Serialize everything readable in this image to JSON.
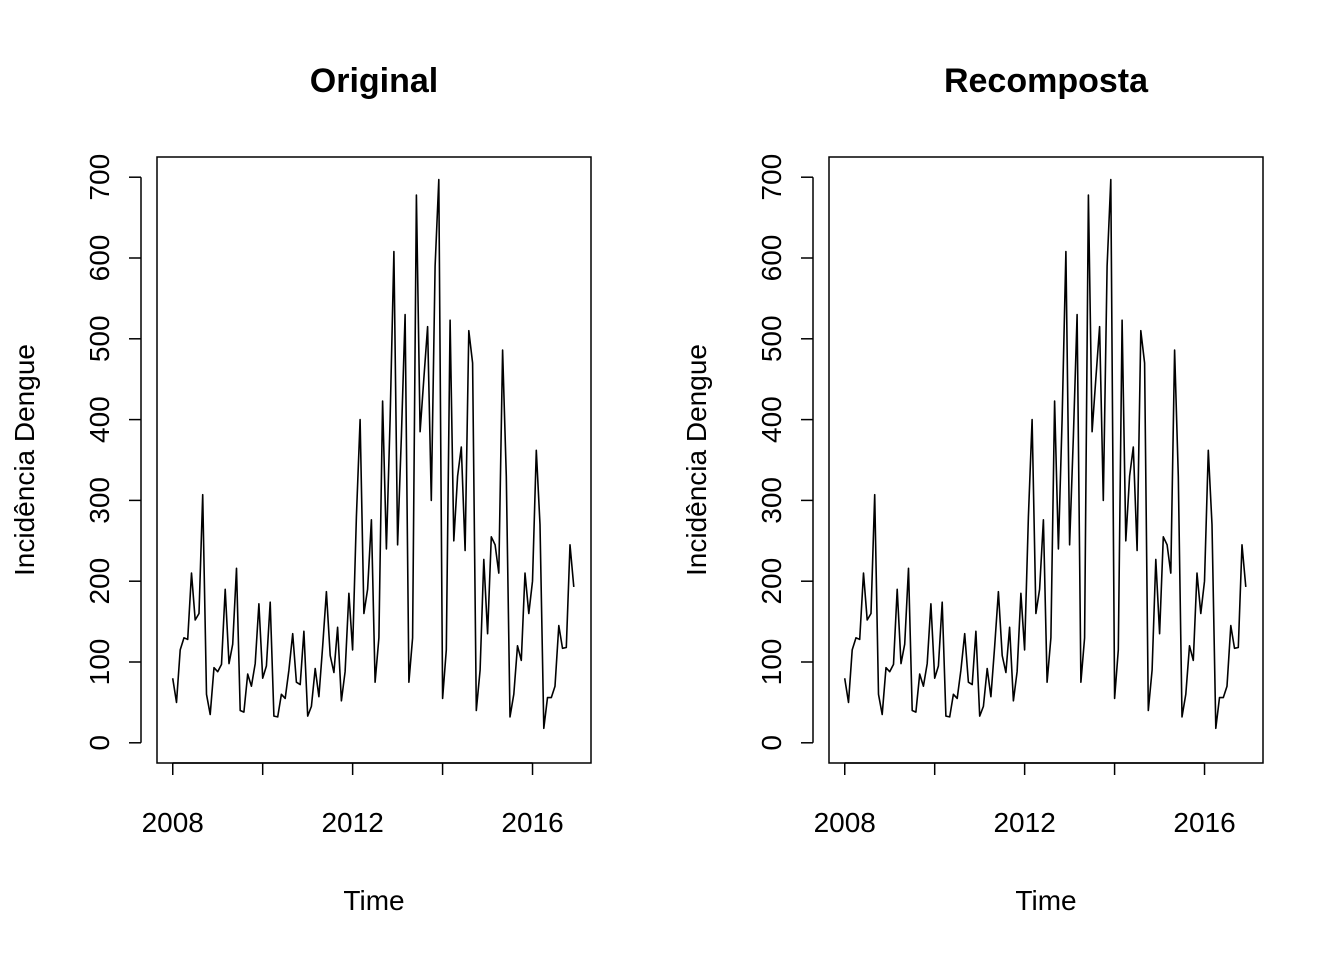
{
  "chart_data": [
    {
      "type": "line",
      "title": "Original",
      "xlabel": "Time",
      "ylabel": "Incidência Dengue",
      "x_start": 2008,
      "frequency": 12,
      "xlim": [
        2007.65,
        2017.3
      ],
      "ylim": [
        -25,
        725
      ],
      "xticks": [
        2008,
        2010,
        2012,
        2014,
        2016
      ],
      "xtick_labels": [
        "2008",
        "",
        "2012",
        "",
        "2016"
      ],
      "yticks": [
        0,
        100,
        200,
        300,
        400,
        500,
        600,
        700
      ],
      "ytick_labels": [
        "0",
        "100",
        "200",
        "300",
        "400",
        "500",
        "600",
        "700"
      ],
      "values": [
        80,
        50,
        115,
        130,
        128,
        210,
        152,
        160,
        307,
        60,
        35,
        93,
        88,
        97,
        190,
        98,
        122,
        216,
        40,
        38,
        85,
        70,
        98,
        172,
        80,
        95,
        174,
        33,
        32,
        60,
        55,
        90,
        135,
        75,
        72,
        138,
        33,
        45,
        92,
        57,
        120,
        187,
        108,
        87,
        143,
        52,
        88,
        185,
        115,
        280,
        400,
        160,
        190,
        276,
        75,
        130,
        423,
        240,
        400,
        608,
        245,
        380,
        530,
        75,
        130,
        678,
        385,
        450,
        515,
        300,
        590,
        697,
        55,
        115,
        523,
        250,
        330,
        366,
        238,
        510,
        470,
        40,
        90,
        227,
        135,
        255,
        245,
        210,
        486,
        330,
        32,
        60,
        120,
        102,
        210,
        160,
        200,
        362,
        270,
        18,
        56,
        56,
        70,
        145,
        117,
        118,
        245,
        193
      ]
    },
    {
      "type": "line",
      "title": "Recomposta",
      "xlabel": "Time",
      "ylabel": "Incidência Dengue",
      "x_start": 2008,
      "frequency": 12,
      "xlim": [
        2007.65,
        2017.3
      ],
      "ylim": [
        -25,
        725
      ],
      "xticks": [
        2008,
        2010,
        2012,
        2014,
        2016
      ],
      "xtick_labels": [
        "2008",
        "",
        "2012",
        "",
        "2016"
      ],
      "yticks": [
        0,
        100,
        200,
        300,
        400,
        500,
        600,
        700
      ],
      "ytick_labels": [
        "0",
        "100",
        "200",
        "300",
        "400",
        "500",
        "600",
        "700"
      ],
      "values": [
        80,
        50,
        115,
        130,
        128,
        210,
        152,
        160,
        307,
        60,
        35,
        93,
        88,
        97,
        190,
        98,
        122,
        216,
        40,
        38,
        85,
        70,
        98,
        172,
        80,
        95,
        174,
        33,
        32,
        60,
        55,
        90,
        135,
        75,
        72,
        138,
        33,
        45,
        92,
        57,
        120,
        187,
        108,
        87,
        143,
        52,
        88,
        185,
        115,
        280,
        400,
        160,
        190,
        276,
        75,
        130,
        423,
        240,
        400,
        608,
        245,
        380,
        530,
        75,
        130,
        678,
        385,
        450,
        515,
        300,
        590,
        697,
        55,
        115,
        523,
        250,
        330,
        366,
        238,
        510,
        470,
        40,
        90,
        227,
        135,
        255,
        245,
        210,
        486,
        330,
        32,
        60,
        120,
        102,
        210,
        160,
        200,
        362,
        270,
        18,
        56,
        56,
        70,
        145,
        117,
        118,
        245,
        193
      ]
    }
  ]
}
